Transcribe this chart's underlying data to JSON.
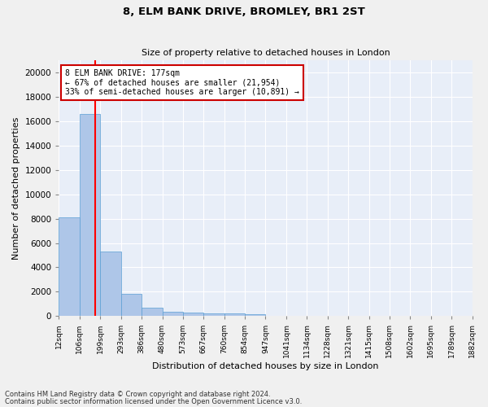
{
  "title1": "8, ELM BANK DRIVE, BROMLEY, BR1 2ST",
  "title2": "Size of property relative to detached houses in London",
  "xlabel": "Distribution of detached houses by size in London",
  "ylabel": "Number of detached properties",
  "annotation_line1": "8 ELM BANK DRIVE: 177sqm",
  "annotation_line2": "← 67% of detached houses are smaller (21,954)",
  "annotation_line3": "33% of semi-detached houses are larger (10,891) →",
  "property_size_sqm": 177,
  "bin_edges": [
    12,
    106,
    199,
    293,
    386,
    480,
    573,
    667,
    760,
    854,
    947,
    1041,
    1134,
    1228,
    1321,
    1415,
    1508,
    1602,
    1695,
    1789,
    1882
  ],
  "bin_labels": [
    "12sqm",
    "106sqm",
    "199sqm",
    "293sqm",
    "386sqm",
    "480sqm",
    "573sqm",
    "667sqm",
    "760sqm",
    "854sqm",
    "947sqm",
    "1041sqm",
    "1134sqm",
    "1228sqm",
    "1321sqm",
    "1415sqm",
    "1508sqm",
    "1602sqm",
    "1695sqm",
    "1789sqm",
    "1882sqm"
  ],
  "bar_heights": [
    8100,
    16600,
    5300,
    1850,
    700,
    370,
    290,
    220,
    200,
    160,
    0,
    0,
    0,
    0,
    0,
    0,
    0,
    0,
    0,
    0
  ],
  "bar_color": "#aec6e8",
  "bar_edge_color": "#5a9fd4",
  "red_line_x": 177,
  "ylim": [
    0,
    21000
  ],
  "yticks": [
    0,
    2000,
    4000,
    6000,
    8000,
    10000,
    12000,
    14000,
    16000,
    18000,
    20000
  ],
  "bg_color": "#e8eef8",
  "grid_color": "#ffffff",
  "annotation_box_color": "#ffffff",
  "annotation_border_color": "#cc0000",
  "footer_line1": "Contains HM Land Registry data © Crown copyright and database right 2024.",
  "footer_line2": "Contains public sector information licensed under the Open Government Licence v3.0."
}
